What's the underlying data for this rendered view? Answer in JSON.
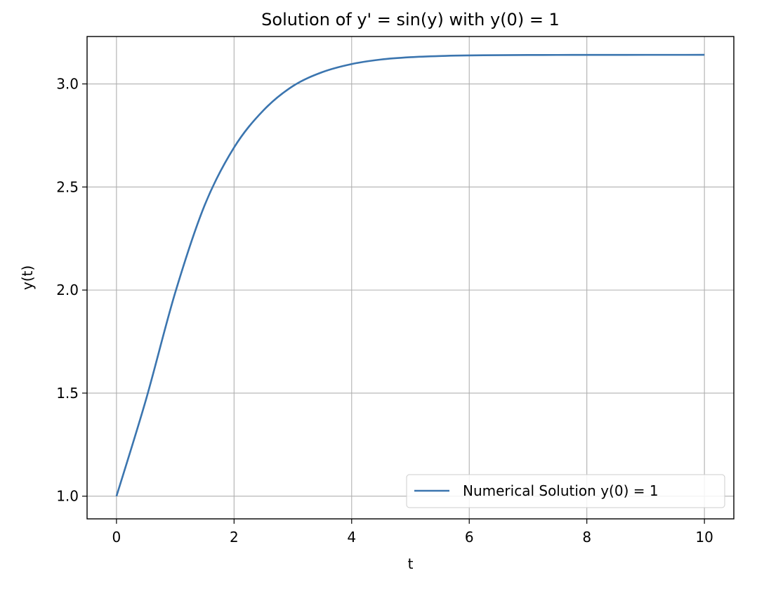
{
  "chart_data": {
    "type": "line",
    "title": "Solution of y' = sin(y) with y(0) = 1",
    "xlabel": "t",
    "ylabel": "y(t)",
    "xlim": [
      -0.5,
      10.5
    ],
    "ylim": [
      0.89,
      3.23
    ],
    "xticks": [
      0,
      2,
      4,
      6,
      8,
      10
    ],
    "yticks": [
      1.0,
      1.5,
      2.0,
      2.5,
      3.0
    ],
    "grid": true,
    "legend_position": "lower-right",
    "series": [
      {
        "name": "Numerical Solution y(0) = 1",
        "color": "#3b75af",
        "x": [
          0,
          0.5,
          1,
          1.5,
          2,
          2.5,
          3,
          3.5,
          4,
          4.5,
          5,
          5.5,
          6,
          6.5,
          7,
          7.5,
          8,
          8.5,
          9,
          9.5,
          10
        ],
        "y": [
          1.0,
          1.4665,
          1.9883,
          2.4116,
          2.6916,
          2.8719,
          2.9894,
          3.0571,
          3.0964,
          3.1185,
          3.1297,
          3.1354,
          3.1382,
          3.1396,
          3.1403,
          3.1406,
          3.1408,
          3.1409,
          3.141,
          3.141,
          3.1411
        ]
      }
    ]
  }
}
